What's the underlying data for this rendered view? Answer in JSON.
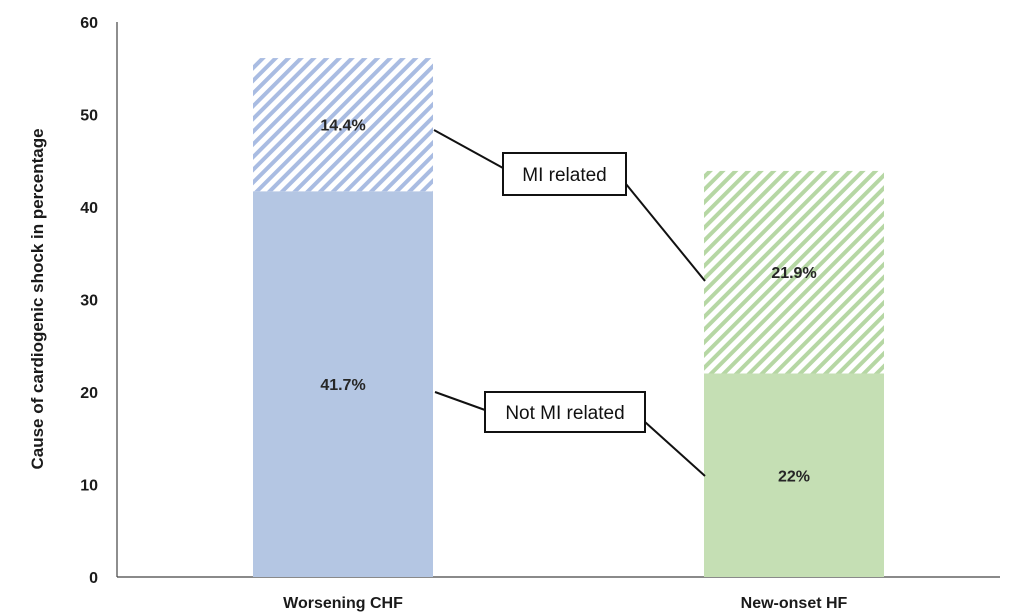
{
  "chart_data": {
    "type": "bar",
    "stacked": true,
    "ylabel": "Cause of  cardiogenic  shock in percentage",
    "xlabel": "",
    "ylim": [
      0,
      60
    ],
    "yticks": [
      0,
      10,
      20,
      30,
      40,
      50,
      60
    ],
    "grid": false,
    "categories": [
      "Worsening CHF",
      "New-onset HF"
    ],
    "series": [
      {
        "values": [
          41.7,
          22
        ],
        "labels": [
          "41.7%",
          "22%"
        ],
        "fill": "solid",
        "colors": [
          "#b4c6e3",
          "#c5dfb4"
        ]
      },
      {
        "values": [
          14.4,
          21.9
        ],
        "labels": [
          "14.4%",
          "21.9%"
        ],
        "fill": "hatched",
        "colors": [
          "#a9bce2",
          "#b6d7a4"
        ]
      }
    ],
    "annotations": [
      {
        "text": "MI related",
        "series_index": 1
      },
      {
        "text": "Not MI related",
        "series_index": 0
      }
    ]
  }
}
